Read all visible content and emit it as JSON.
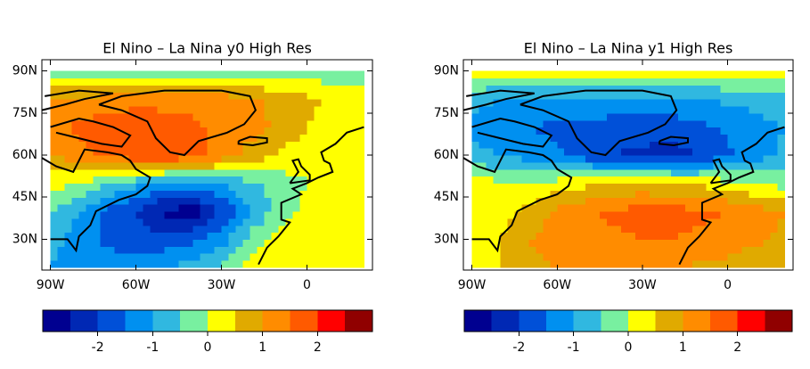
{
  "panels": [
    {
      "title": "El Nino – La Nina y0 High Res",
      "lon": [
        -90,
        -80,
        -70,
        -60,
        -50,
        -40,
        -30,
        -20,
        -10,
        0,
        10,
        20
      ],
      "lat": [
        20,
        30,
        40,
        50,
        60,
        70,
        80,
        90
      ],
      "values": [
        [
          -1,
          -1.2,
          -1.3,
          -1.2,
          -1,
          -0.8,
          -0.5,
          0.2,
          0.3,
          0.3,
          0.3,
          0.3
        ],
        [
          -0.8,
          -1.3,
          -1.6,
          -1.8,
          -1.8,
          -1.6,
          -1.2,
          -0.3,
          0.2,
          0.3,
          0.3,
          0.3
        ],
        [
          -0.4,
          -1,
          -1.6,
          -2,
          -2.6,
          -2.8,
          -2,
          -1,
          -0.3,
          0.2,
          0.2,
          0.2
        ],
        [
          0.2,
          0,
          -0.5,
          -0.8,
          -1.2,
          -1.2,
          -1,
          -0.6,
          -0.3,
          0,
          0.2,
          0.2
        ],
        [
          1,
          1.3,
          1.6,
          1.9,
          2,
          1.8,
          1.3,
          0.8,
          0.4,
          0.2,
          0.2,
          0.2
        ],
        [
          1.3,
          1.6,
          1.8,
          1.9,
          1.8,
          1.6,
          1.4,
          1.2,
          0.9,
          0.5,
          0.3,
          0.2
        ],
        [
          1,
          1.1,
          1.2,
          1.3,
          1.3,
          1.3,
          1.2,
          1.1,
          0.9,
          0.6,
          0.4,
          0.3
        ],
        [
          -0.3,
          -0.3,
          -0.3,
          -0.3,
          -0.3,
          -0.3,
          -0.3,
          -0.3,
          -0.3,
          -0.3,
          -0.3,
          -0.3
        ]
      ],
      "xlim": [
        -93,
        23
      ],
      "ylim": [
        19,
        94
      ],
      "xticks": [
        {
          "value": -90,
          "label": "90W"
        },
        {
          "value": -60,
          "label": "60W"
        },
        {
          "value": -30,
          "label": "30W"
        },
        0
      ],
      "yticks": [
        {
          "value": 30,
          "label": "30N"
        },
        {
          "value": 45,
          "label": "45N"
        },
        {
          "value": 60,
          "label": "60N"
        },
        {
          "value": 75,
          "label": "75N"
        },
        {
          "value": 90,
          "label": "90N"
        }
      ],
      "colorbar": {
        "levels": [
          -3,
          -2.5,
          -2,
          -1.5,
          -1,
          -0.5,
          0,
          0.5,
          1,
          1.5,
          2,
          2.5,
          3
        ],
        "colors": [
          "#000090",
          "#0028b4",
          "#0050d8",
          "#0090f0",
          "#30b8e0",
          "#78f0a0",
          "#ffff00",
          "#e0aa00",
          "#ff8c00",
          "#ff5a00",
          "#ff0000",
          "#900000"
        ],
        "ticks": [
          -2,
          -1,
          0,
          1,
          2
        ]
      }
    },
    {
      "title": "El Nino – La Nina y1 High Res",
      "lon": [
        -90,
        -80,
        -70,
        -60,
        -50,
        -40,
        -30,
        -20,
        -10,
        0,
        10,
        20
      ],
      "lat": [
        20,
        30,
        40,
        50,
        60,
        70,
        80,
        90
      ],
      "values": [
        [
          0.2,
          0.5,
          0.8,
          1,
          1.1,
          1.1,
          1.1,
          1,
          0.9,
          0.8,
          0.6,
          0.5
        ],
        [
          0.1,
          0.5,
          1,
          1.2,
          1.3,
          1.4,
          1.5,
          1.5,
          1.4,
          1.3,
          1.1,
          0.9
        ],
        [
          0.1,
          0.3,
          0.7,
          1.1,
          1.4,
          1.6,
          1.7,
          1.7,
          1.6,
          1.5,
          1.2,
          1
        ],
        [
          0.2,
          0.1,
          0,
          0.2,
          0.4,
          0.5,
          0.6,
          0.5,
          0.4,
          0.2,
          0,
          -0.2
        ],
        [
          -0.8,
          -1,
          -1.2,
          -1.4,
          -1.8,
          -2,
          -2.1,
          -2.2,
          -2,
          -1.6,
          -1.2,
          -0.9
        ],
        [
          -1.2,
          -1.3,
          -1.5,
          -1.6,
          -1.6,
          -1.8,
          -1.8,
          -1.8,
          -1.6,
          -1.4,
          -1.2,
          -1
        ],
        [
          -0.8,
          -1,
          -1.1,
          -1.1,
          -1.1,
          -1.1,
          -1.1,
          -1.1,
          -1,
          -0.9,
          -0.8,
          -0.7
        ],
        [
          0.2,
          0.2,
          0.2,
          0.2,
          0.2,
          0.2,
          0.2,
          0.2,
          0.2,
          0.2,
          0.2,
          0.2
        ]
      ],
      "xlim": [
        -93,
        23
      ],
      "ylim": [
        19,
        94
      ],
      "xticks": [
        {
          "value": -90,
          "label": "90W"
        },
        {
          "value": -60,
          "label": "60W"
        },
        {
          "value": -30,
          "label": "30W"
        },
        0
      ],
      "yticks": [
        {
          "value": 30,
          "label": "30N"
        },
        {
          "value": 45,
          "label": "45N"
        },
        {
          "value": 60,
          "label": "60N"
        },
        {
          "value": 75,
          "label": "75N"
        },
        {
          "value": 90,
          "label": "90N"
        }
      ],
      "colorbar": {
        "levels": [
          -3,
          -2.5,
          -2,
          -1.5,
          -1,
          -0.5,
          0,
          0.5,
          1,
          1.5,
          2,
          2.5,
          3
        ],
        "colors": [
          "#000090",
          "#0028b4",
          "#0050d8",
          "#0090f0",
          "#30b8e0",
          "#78f0a0",
          "#ffff00",
          "#e0aa00",
          "#ff8c00",
          "#ff5a00",
          "#ff0000",
          "#900000"
        ],
        "ticks": [
          -2,
          -1,
          0,
          1,
          2
        ]
      }
    }
  ]
}
